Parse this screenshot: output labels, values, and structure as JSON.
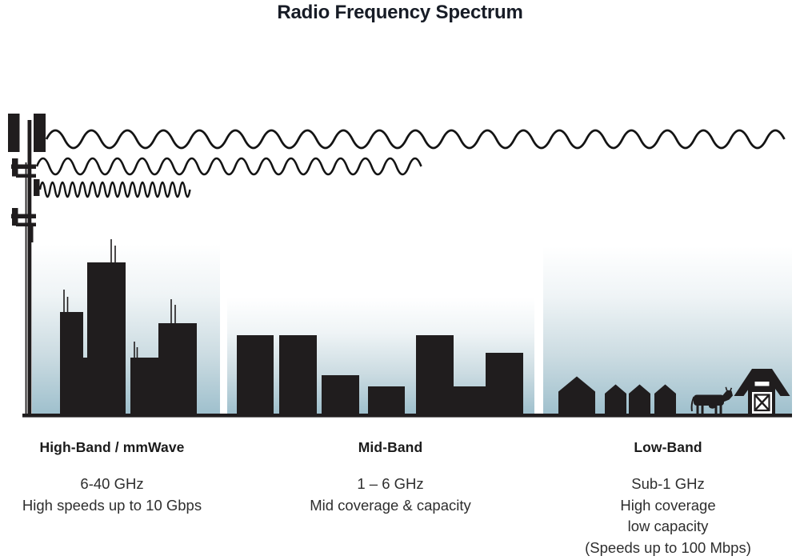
{
  "title": "Radio Frequency Spectrum",
  "bands": [
    {
      "name": "High-Band / mmWave",
      "range": "6-40 GHz",
      "details": [
        "High speeds up to 10 Gbps"
      ],
      "scene": "dense city skyline with rooftop antennas"
    },
    {
      "name": "Mid-Band",
      "range": "1 – 6 GHz",
      "details": [
        "Mid coverage & capacity"
      ],
      "scene": "mid-rise town skyline"
    },
    {
      "name": "Low-Band",
      "range": "Sub-1 GHz",
      "details": [
        "High coverage",
        "low capacity",
        "(Speeds up to 100 Mbps)"
      ],
      "scene": "rural farm with houses, cow and barn"
    }
  ],
  "waves": [
    {
      "name": "long-wavelength wave",
      "band": "Low-Band",
      "reach": "farthest"
    },
    {
      "name": "medium-wavelength wave",
      "band": "Mid-Band",
      "reach": "medium"
    },
    {
      "name": "short-wavelength wave",
      "band": "High-Band / mmWave",
      "reach": "shortest"
    }
  ],
  "icons": [
    "cell-tower-icon",
    "radio-wave-icon",
    "city-building-icon",
    "house-icon",
    "cow-icon",
    "barn-icon"
  ],
  "colors": {
    "background": "#ffffff",
    "silhouette": "#201d1e",
    "sky_top": "#ffffff",
    "sky_bottom": "#9fc0cd",
    "title_text": "#171c26",
    "body_text": "#2e2e2e"
  }
}
